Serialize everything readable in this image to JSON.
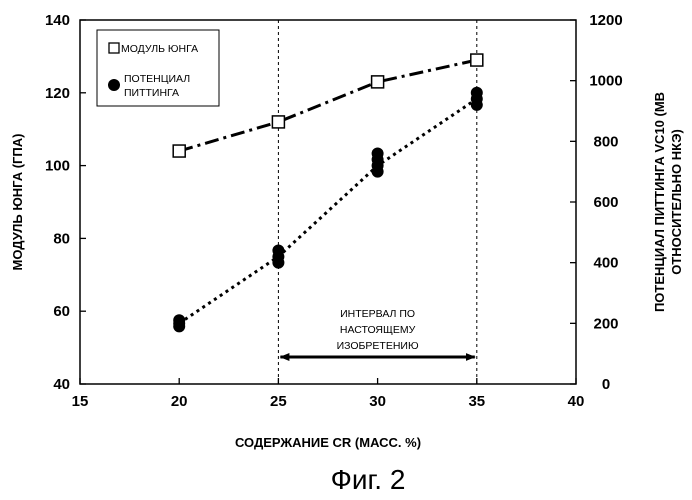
{
  "chart_data": {
    "type": "line",
    "xlabel": "СОДЕРЖАНИЕ CR (МАСС. %)",
    "ylabel_left": "МОДУЛЬ ЮНГА (ГПА)",
    "ylabel_right_line1": "ПОТЕНЦИАЛ ПИТТИНГА VC10 (МВ",
    "ylabel_right_line2": "ОТНОСИТЕЛЬНО НКЭ)",
    "xlim": [
      15,
      40
    ],
    "ylim_left": [
      40,
      140
    ],
    "ylim_right": [
      0,
      1200
    ],
    "x_ticks": [
      "15",
      "20",
      "25",
      "30",
      "35",
      "40"
    ],
    "y_left_ticks": [
      "40",
      "60",
      "80",
      "100",
      "120",
      "140"
    ],
    "y_right_ticks": [
      "0",
      "200",
      "400",
      "600",
      "800",
      "1000",
      "1200"
    ],
    "legend": {
      "placement": "top-left",
      "young_label": "МОДУЛЬ ЮНГА",
      "pitting_label_line1": "ПОТЕНЦИАЛ",
      "pitting_label_line2": "ПИТТИНГА"
    },
    "series": [
      {
        "name": "МОДУЛЬ ЮНГА",
        "axis": "left",
        "marker": "open-square",
        "line": "dash-dot",
        "x": [
          20,
          25,
          30,
          35
        ],
        "y": [
          104,
          112,
          123,
          129
        ]
      },
      {
        "name": "ПОТЕНЦИАЛ ПИТТИНГА",
        "axis": "right",
        "marker": "filled-circle",
        "line": "dotted",
        "points": [
          [
            20,
            190
          ],
          [
            20,
            200
          ],
          [
            20,
            210
          ],
          [
            25,
            400
          ],
          [
            25,
            420
          ],
          [
            25,
            440
          ],
          [
            30,
            700
          ],
          [
            30,
            720
          ],
          [
            30,
            740
          ],
          [
            30,
            760
          ],
          [
            35,
            920
          ],
          [
            35,
            940
          ],
          [
            35,
            960
          ]
        ],
        "trend_x": [
          20,
          25,
          30,
          35
        ],
        "trend_y": [
          200,
          420,
          720,
          940
        ]
      }
    ],
    "guides": {
      "x": [
        25,
        35
      ],
      "style": "dashed"
    },
    "annotation": {
      "line1": "ИНТЕРВАЛ ПО",
      "line2": "НАСТОЯЩЕМУ",
      "line3": "ИЗОБРЕТЕНИЮ",
      "x_from": 25,
      "x_to": 35,
      "arrow": "double"
    },
    "caption": "Фиг. 2"
  }
}
